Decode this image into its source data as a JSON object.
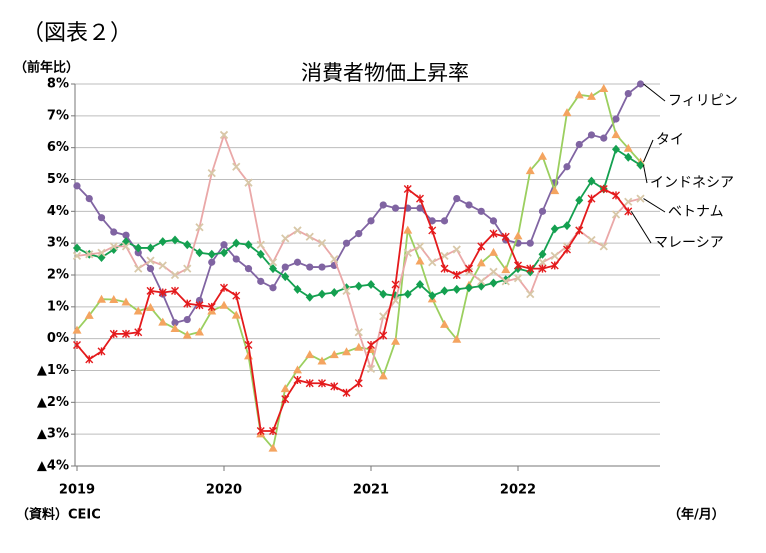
{
  "chart_data": {
    "type": "line",
    "figure_label": "（図表２）",
    "title": "消費者物価上昇率",
    "y_axis_label": "（前年比）",
    "x_axis_label": "（年/月）",
    "source": "（資料）CEIC",
    "categories": [
      "2019",
      null,
      null,
      null,
      null,
      null,
      null,
      null,
      null,
      null,
      null,
      null,
      "2020",
      null,
      null,
      null,
      null,
      null,
      null,
      null,
      null,
      null,
      null,
      null,
      "2021",
      null,
      null,
      null,
      null,
      null,
      null,
      null,
      null,
      null,
      null,
      null,
      "2022",
      null,
      null,
      null,
      null,
      null,
      null,
      null,
      null,
      null,
      null
    ],
    "ylim": [
      -4,
      8
    ],
    "yticks": [
      {
        "value": 8,
        "label": "8%"
      },
      {
        "value": 7,
        "label": "7%"
      },
      {
        "value": 6,
        "label": "6%"
      },
      {
        "value": 5,
        "label": "5%"
      },
      {
        "value": 4,
        "label": "4%"
      },
      {
        "value": 3,
        "label": "3%"
      },
      {
        "value": 2,
        "label": "2%"
      },
      {
        "value": 1,
        "label": "1%"
      },
      {
        "value": 0,
        "label": "0%"
      },
      {
        "value": -1,
        "label": "▲1%"
      },
      {
        "value": -2,
        "label": "▲2%"
      },
      {
        "value": -3,
        "label": "▲3%"
      },
      {
        "value": -4,
        "label": "▲4%"
      }
    ],
    "grid": true,
    "series": [
      {
        "name": "フィリピン",
        "color": "#8064a2",
        "marker": "circle",
        "marker_color": "#8064a2",
        "values": [
          4.8,
          4.4,
          3.8,
          3.35,
          3.25,
          2.7,
          2.2,
          1.4,
          0.5,
          0.6,
          1.2,
          2.4,
          2.95,
          2.5,
          2.2,
          1.8,
          1.6,
          2.25,
          2.4,
          2.25,
          2.25,
          2.3,
          3.0,
          3.3,
          3.7,
          4.2,
          4.1,
          4.1,
          4.1,
          3.7,
          3.7,
          4.4,
          4.2,
          4.0,
          3.7,
          3.1,
          3.0,
          3.0,
          4.0,
          4.9,
          5.4,
          6.1,
          6.4,
          6.3,
          6.9,
          7.7,
          8.0
        ]
      },
      {
        "name": "タイ",
        "color": "#9bcf5f",
        "marker": "triangle",
        "marker_color": "#f4a460",
        "values": [
          0.27,
          0.73,
          1.24,
          1.23,
          1.15,
          0.87,
          0.98,
          0.52,
          0.32,
          0.11,
          0.21,
          0.87,
          1.05,
          0.74,
          -0.54,
          -2.99,
          -3.44,
          -1.57,
          -0.98,
          -0.5,
          -0.7,
          -0.5,
          -0.41,
          -0.27,
          -0.34,
          -1.17,
          -0.08,
          3.41,
          2.44,
          1.25,
          0.45,
          -0.02,
          1.68,
          2.38,
          2.71,
          2.17,
          3.23,
          5.28,
          5.73,
          4.65,
          7.1,
          7.66,
          7.61,
          7.86,
          6.41,
          5.98,
          5.55
        ]
      },
      {
        "name": "インドネシア",
        "color": "#14a050",
        "marker": "diamond",
        "marker_color": "#14a050",
        "values": [
          2.85,
          2.65,
          2.55,
          2.8,
          3.05,
          2.85,
          2.85,
          3.05,
          3.1,
          2.95,
          2.7,
          2.65,
          2.7,
          3.0,
          2.95,
          2.65,
          2.2,
          1.95,
          1.55,
          1.3,
          1.4,
          1.45,
          1.6,
          1.65,
          1.7,
          1.4,
          1.35,
          1.4,
          1.7,
          1.35,
          1.5,
          1.55,
          1.6,
          1.65,
          1.75,
          1.85,
          2.2,
          2.1,
          2.65,
          3.45,
          3.55,
          4.35,
          4.95,
          4.7,
          5.95,
          5.7,
          5.45
        ]
      },
      {
        "name": "ベトナム",
        "color": "#eaa8a8",
        "marker": "cross",
        "marker_color": "#d8c8a8",
        "values": [
          2.6,
          2.65,
          2.7,
          2.9,
          2.9,
          2.2,
          2.45,
          2.3,
          2.0,
          2.2,
          3.5,
          5.2,
          6.4,
          5.4,
          4.9,
          2.95,
          2.4,
          3.15,
          3.4,
          3.2,
          3.0,
          2.5,
          1.5,
          0.2,
          -0.95,
          0.7,
          1.2,
          2.7,
          2.9,
          2.4,
          2.6,
          2.8,
          2.1,
          1.8,
          2.1,
          1.8,
          1.9,
          1.4,
          2.4,
          2.6,
          2.9,
          3.4,
          3.1,
          2.9,
          3.9,
          4.3,
          4.4
        ]
      },
      {
        "name": "マレーシア",
        "color": "#e41a1c",
        "marker": "star",
        "marker_color": "#e41a1c",
        "values": [
          -0.2,
          -0.65,
          -0.4,
          0.15,
          0.15,
          0.2,
          1.5,
          1.45,
          1.5,
          1.1,
          1.05,
          1.0,
          1.6,
          1.35,
          -0.2,
          -2.9,
          -2.9,
          -1.9,
          -1.3,
          -1.4,
          -1.4,
          -1.5,
          -1.7,
          -1.4,
          -0.2,
          0.1,
          1.7,
          4.7,
          4.4,
          3.4,
          2.2,
          2.0,
          2.2,
          2.9,
          3.3,
          3.2,
          2.3,
          2.2,
          2.2,
          2.3,
          2.8,
          3.4,
          4.4,
          4.7,
          4.5,
          4.0,
          null
        ]
      }
    ]
  }
}
